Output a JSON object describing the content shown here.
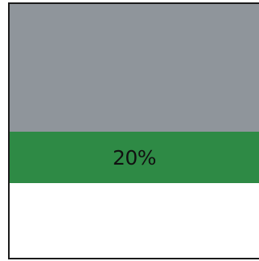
{
  "panel": {
    "top_color": "#8f959b",
    "bottom_color": "#ffffff"
  },
  "progress": {
    "label": "20%",
    "value_percent": 20,
    "fill_color": "#2e8a45"
  }
}
